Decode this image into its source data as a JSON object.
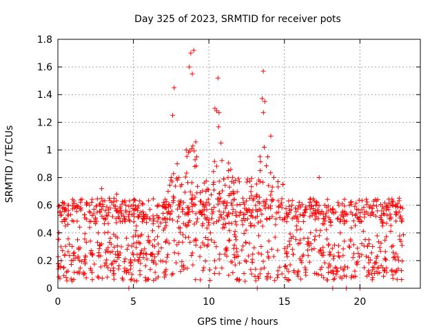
{
  "chart_data": {
    "type": "scatter",
    "title": "Day 325 of 2023, SRMTID for receiver pots",
    "xlabel": "GPS time / hours",
    "ylabel": "SRMTID / TECUs",
    "xlim": [
      0,
      24
    ],
    "ylim": [
      0,
      1.8
    ],
    "x_ticks": [
      0,
      5,
      10,
      15,
      20
    ],
    "x_tick_labels": [
      "0",
      "5",
      "10",
      "15",
      "20"
    ],
    "y_ticks": [
      0,
      0.2,
      0.4,
      0.6,
      0.8,
      1,
      1.2,
      1.4,
      1.6,
      1.8
    ],
    "y_tick_labels": [
      "0",
      "0.2",
      "0.4",
      "0.6",
      "0.8",
      "1",
      "1.2",
      "1.4",
      "1.6",
      "1.8"
    ],
    "grid": true,
    "marker": "+",
    "color": "#ff0000",
    "series": [
      {
        "name": "SRMTID",
        "description": "Dense background of points between 0 and 0.65 TECU across the day; enhanced activity with peaks near 8.8 h (~1.7), 10.6 h (~1.5), 13.6 h (~1.57) and 14.1 h (~1.1); a few zero-valued points at ~4.7, 13.2, 18.2, 19.1 and 20.0 h.",
        "points": [
          [
            0.1,
            0.55
          ],
          [
            0.2,
            0.3
          ],
          [
            0.3,
            0.62
          ],
          [
            0.4,
            0.15
          ],
          [
            0.5,
            0.45
          ],
          [
            0.7,
            0.6
          ],
          [
            0.9,
            0.2
          ],
          [
            1.1,
            0.58
          ],
          [
            1.3,
            0.35
          ],
          [
            1.5,
            0.62
          ],
          [
            1.7,
            0.1
          ],
          [
            1.9,
            0.5
          ],
          [
            2.1,
            0.6
          ],
          [
            2.3,
            0.25
          ],
          [
            2.6,
            0.55
          ],
          [
            2.9,
            0.72
          ],
          [
            3.1,
            0.4
          ],
          [
            3.4,
            0.65
          ],
          [
            3.6,
            0.18
          ],
          [
            3.9,
            0.68
          ],
          [
            4.2,
            0.3
          ],
          [
            4.5,
            0.6
          ],
          [
            4.7,
            0.0
          ],
          [
            4.9,
            0.1
          ],
          [
            5.2,
            0.45
          ],
          [
            5.5,
            0.55
          ],
          [
            5.8,
            0.25
          ],
          [
            6.1,
            0.5
          ],
          [
            6.4,
            0.35
          ],
          [
            6.7,
            0.6
          ],
          [
            7.0,
            0.42
          ],
          [
            7.3,
            0.7
          ],
          [
            7.5,
            0.8
          ],
          [
            7.6,
            1.25
          ],
          [
            7.7,
            1.45
          ],
          [
            7.9,
            0.9
          ],
          [
            8.2,
            0.75
          ],
          [
            8.5,
            1.0
          ],
          [
            8.7,
            1.6
          ],
          [
            8.8,
            1.7
          ],
          [
            8.9,
            1.55
          ],
          [
            9.0,
            1.72
          ],
          [
            9.2,
            0.95
          ],
          [
            9.5,
            0.55
          ],
          [
            9.8,
            0.7
          ],
          [
            10.1,
            0.4
          ],
          [
            10.4,
            1.3
          ],
          [
            10.6,
            1.52
          ],
          [
            10.8,
            1.05
          ],
          [
            11.0,
            0.5
          ],
          [
            11.3,
            0.85
          ],
          [
            11.6,
            0.7
          ],
          [
            11.8,
            0.35
          ],
          [
            12.1,
            0.55
          ],
          [
            12.4,
            0.2
          ],
          [
            12.7,
            0.65
          ],
          [
            13.0,
            0.45
          ],
          [
            13.2,
            0.0
          ],
          [
            13.4,
            0.85
          ],
          [
            13.6,
            1.57
          ],
          [
            13.7,
            1.35
          ],
          [
            13.9,
            0.95
          ],
          [
            14.1,
            1.1
          ],
          [
            14.3,
            0.8
          ],
          [
            14.6,
            0.55
          ],
          [
            14.9,
            0.75
          ],
          [
            15.2,
            0.3
          ],
          [
            15.5,
            0.6
          ],
          [
            15.8,
            0.45
          ],
          [
            16.1,
            0.2
          ],
          [
            16.4,
            0.55
          ],
          [
            16.7,
            0.62
          ],
          [
            17.0,
            0.35
          ],
          [
            17.3,
            0.8
          ],
          [
            17.6,
            0.5
          ],
          [
            17.9,
            0.15
          ],
          [
            18.2,
            0.0
          ],
          [
            18.4,
            0.55
          ],
          [
            18.7,
            0.4
          ],
          [
            19.1,
            0.0
          ],
          [
            19.3,
            0.6
          ],
          [
            19.6,
            0.25
          ],
          [
            19.9,
            0.5
          ],
          [
            20.0,
            0.0
          ],
          [
            20.3,
            0.55
          ],
          [
            20.6,
            0.35
          ],
          [
            20.9,
            0.6
          ],
          [
            21.2,
            0.15
          ],
          [
            21.5,
            0.45
          ],
          [
            21.8,
            0.6
          ],
          [
            22.1,
            0.3
          ],
          [
            22.4,
            0.55
          ],
          [
            22.6,
            0.65
          ],
          [
            22.8,
            0.5
          ]
        ]
      }
    ]
  }
}
